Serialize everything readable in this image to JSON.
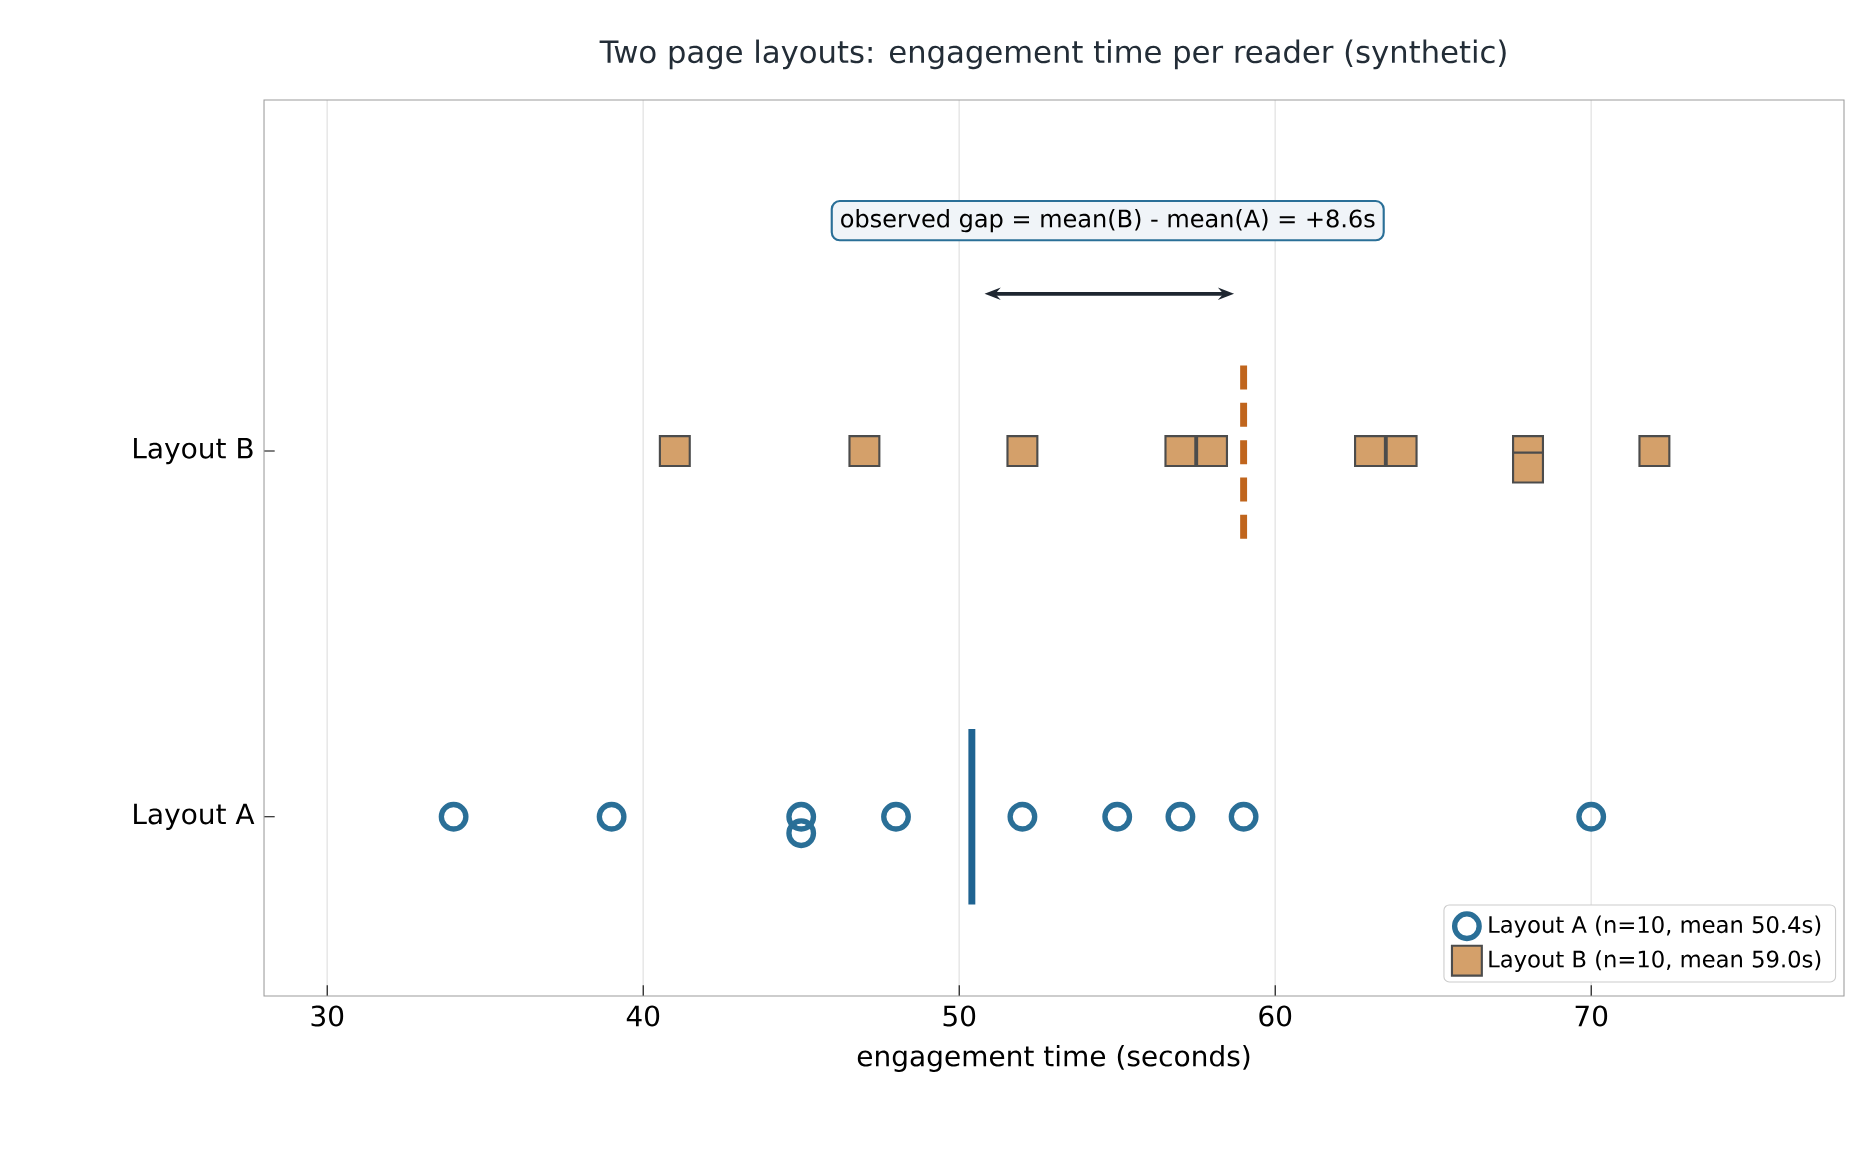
{
  "chart_data": {
    "type": "scatter",
    "orientation": "horizontal",
    "title": "Two page layouts: engagement time per reader (synthetic)",
    "xlabel": "engagement time (seconds)",
    "categories": [
      "Layout B",
      "Layout A"
    ],
    "xlim": [
      28,
      78
    ],
    "xticks": [
      30,
      40,
      50,
      60,
      70
    ],
    "grid": "x",
    "legend": "bottom right",
    "series": [
      {
        "name": "Layout A  (n=10, mean 50.4s)",
        "color": "#2a6f97",
        "marker": "circle",
        "x": [
          "Layout A",
          "Layout A",
          "Layout A",
          "Layout A",
          "Layout A",
          "Layout A",
          "Layout A",
          "Layout A",
          "Layout A",
          "Layout A"
        ],
        "values": [
          34,
          39,
          45,
          45,
          48,
          52,
          55,
          57,
          59,
          70
        ]
      },
      {
        "name": "Layout B  (n=10, mean 59.0s)",
        "color": "#d4a06a",
        "marker": "square",
        "x": [
          "Layout B",
          "Layout B",
          "Layout B",
          "Layout B",
          "Layout B",
          "Layout B",
          "Layout B",
          "Layout B",
          "Layout B",
          "Layout B"
        ],
        "values": [
          41,
          47,
          52,
          57,
          58,
          63,
          64,
          68,
          68,
          72
        ]
      }
    ],
    "ref_lines": [
      {
        "axis": "x",
        "value": 50.4,
        "color": "#1f6391",
        "line_style": "solid"
      },
      {
        "axis": "x",
        "value": 59.0,
        "color": "#c0651d",
        "line_style": "dashed"
      }
    ],
    "annotations": [
      "observed gap = mean(B) - mean(A) = +8.6s"
    ]
  }
}
